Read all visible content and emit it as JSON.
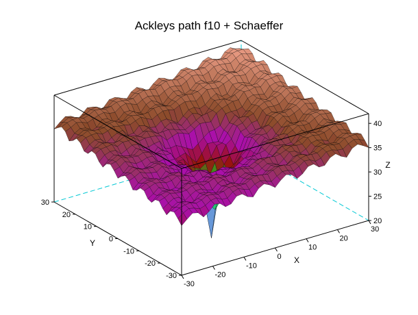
{
  "chart_data": {
    "type": "surface3d",
    "title": "Ackleys path f10 + Schaeffer",
    "xlabel": "X",
    "ylabel": "Y",
    "zlabel": "Z",
    "x_ticks": [
      "-30",
      "-20",
      "-10",
      "0",
      "10",
      "20",
      "30"
    ],
    "y_ticks": [
      "-30",
      "-20",
      "-10",
      "0",
      "10",
      "20",
      "30"
    ],
    "z_ticks": [
      "20",
      "25",
      "30",
      "35",
      "40"
    ],
    "xlim": [
      -30,
      30
    ],
    "ylim": [
      -30,
      30
    ],
    "zlim": [
      20,
      42
    ],
    "grid": false,
    "function": "Ackley path f10 + Schaffer",
    "surface_samples": {
      "xy": [
        [
          -30,
          -30
        ],
        [
          -30,
          30
        ],
        [
          30,
          -30
        ],
        [
          30,
          30
        ],
        [
          0,
          0
        ],
        [
          0,
          15
        ],
        [
          15,
          0
        ],
        [
          -15,
          0
        ],
        [
          0,
          -15
        ],
        [
          25,
          25
        ],
        [
          -25,
          -25
        ]
      ],
      "z": [
        34.5,
        35.5,
        33.0,
        33.5,
        21.0,
        31.5,
        31.0,
        32.0,
        31.5,
        39.5,
        34.0
      ]
    },
    "colors": {
      "low_cyan": "#33cccc",
      "low_green": "#22bb22",
      "mid_red": "#9a1010",
      "mid_magenta": "#aa10aa",
      "high_brown": "#8b4a2a",
      "high_salmon": "#e89a82",
      "minimum_magenta": "#ff00ff",
      "box_hidden_edges": "#00c8d4"
    }
  }
}
